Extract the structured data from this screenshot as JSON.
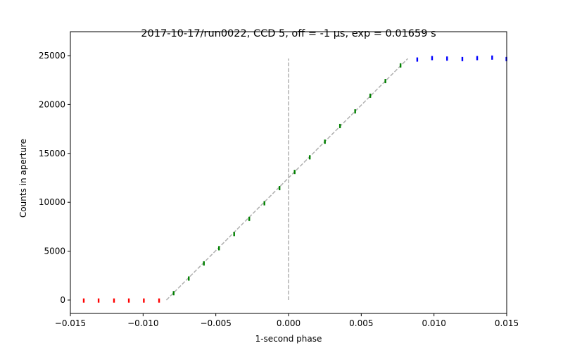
{
  "chart_data": {
    "type": "scatter",
    "title": "2017-10-17/run0022, CCD 5, off = -1 μs, exp = 0.01659 s",
    "x_label": "1-second phase",
    "y_label": "Counts in aperture",
    "xlim": [
      -0.015,
      0.015
    ],
    "ylim": [
      -1370,
      27450
    ],
    "xticks": [
      {
        "value": -0.015,
        "label": "−0.015"
      },
      {
        "value": -0.01,
        "label": "−0.010"
      },
      {
        "value": -0.005,
        "label": "−0.005"
      },
      {
        "value": 0,
        "label": "0.000"
      },
      {
        "value": 0.005,
        "label": "0.005"
      },
      {
        "value": 0.01,
        "label": "0.010"
      },
      {
        "value": 0.015,
        "label": "0.015"
      }
    ],
    "yticks": [
      0,
      5000,
      10000,
      15000,
      20000,
      25000
    ],
    "series": [
      {
        "color": "#ff0000",
        "x": [
          -0.01408,
          -0.01306,
          -0.012,
          -0.01098,
          -0.00995,
          -0.0089
        ],
        "values": [
          -50,
          -50,
          -50,
          -50,
          -50,
          -50
        ]
      },
      {
        "color": "#008000",
        "x": [
          -0.0079,
          -0.00686,
          -0.00582,
          -0.00478,
          -0.00374,
          -0.0027,
          -0.00166,
          -0.00062,
          0.00042,
          0.00146,
          0.0025,
          0.00354,
          0.00458,
          0.00562,
          0.00666,
          0.0077
        ],
        "values": [
          700,
          2200,
          3750,
          5300,
          6750,
          8300,
          9900,
          11450,
          13100,
          14600,
          16200,
          17800,
          19300,
          20900,
          22400,
          24000
        ]
      },
      {
        "color": "#0000ff",
        "x": [
          0.00885,
          0.00987,
          0.0109,
          0.01195,
          0.01297,
          0.014,
          0.01498
        ],
        "values": [
          24600,
          24750,
          24700,
          24650,
          24750,
          24800,
          24650
        ]
      }
    ],
    "lines": [
      {
        "color": "#b0b0b0",
        "x": [
          -0.0084,
          0.0082
        ],
        "values": [
          0,
          24700
        ]
      },
      {
        "color": "#b0b0b0",
        "x": [
          0,
          0
        ],
        "values": [
          0,
          24700
        ]
      }
    ]
  }
}
